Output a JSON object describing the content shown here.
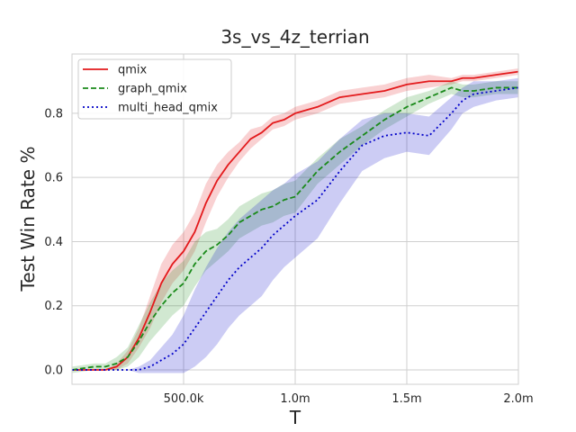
{
  "chart_data": {
    "type": "line",
    "title": "3s_vs_4z_terrian",
    "xlabel": "T",
    "ylabel": "Test Win Rate %",
    "xlim": [
      0,
      2000000
    ],
    "ylim": [
      -0.045,
      0.985
    ],
    "x_ticks": [
      {
        "value": 500000,
        "label": "500.0k"
      },
      {
        "value": 1000000,
        "label": "1.0m"
      },
      {
        "value": 1500000,
        "label": "1.5m"
      },
      {
        "value": 2000000,
        "label": "2.0m"
      }
    ],
    "y_ticks": [
      {
        "value": 0.0,
        "label": "0.0"
      },
      {
        "value": 0.2,
        "label": "0.2"
      },
      {
        "value": 0.4,
        "label": "0.4"
      },
      {
        "value": 0.6,
        "label": "0.6"
      },
      {
        "value": 0.8,
        "label": "0.8"
      }
    ],
    "grid": true,
    "legend_position": "top-left",
    "x": [
      0,
      100000,
      150000,
      200000,
      250000,
      300000,
      350000,
      400000,
      450000,
      500000,
      550000,
      600000,
      650000,
      700000,
      750000,
      800000,
      850000,
      900000,
      950000,
      1000000,
      1100000,
      1200000,
      1300000,
      1400000,
      1500000,
      1600000,
      1700000,
      1750000,
      1800000,
      1900000,
      2000000
    ],
    "series": [
      {
        "name": "qmix",
        "color": "#e31a1c",
        "dash": "solid",
        "values": [
          0.0,
          0.0,
          0.0,
          0.01,
          0.04,
          0.1,
          0.18,
          0.27,
          0.33,
          0.37,
          0.43,
          0.52,
          0.59,
          0.64,
          0.68,
          0.72,
          0.74,
          0.77,
          0.78,
          0.8,
          0.82,
          0.85,
          0.86,
          0.87,
          0.89,
          0.9,
          0.9,
          0.91,
          0.91,
          0.92,
          0.93
        ],
        "band": [
          0.0,
          0.0,
          0.0,
          0.01,
          0.02,
          0.03,
          0.05,
          0.06,
          0.06,
          0.06,
          0.06,
          0.06,
          0.05,
          0.04,
          0.03,
          0.03,
          0.02,
          0.02,
          0.02,
          0.02,
          0.02,
          0.02,
          0.02,
          0.02,
          0.02,
          0.02,
          0.01,
          0.01,
          0.01,
          0.01,
          0.01
        ]
      },
      {
        "name": "graph_qmix",
        "color": "#1a8a1a",
        "dash": "dashed",
        "values": [
          0.0,
          0.01,
          0.01,
          0.02,
          0.04,
          0.09,
          0.15,
          0.2,
          0.24,
          0.27,
          0.33,
          0.37,
          0.39,
          0.42,
          0.46,
          0.48,
          0.5,
          0.51,
          0.53,
          0.54,
          0.62,
          0.68,
          0.73,
          0.78,
          0.82,
          0.85,
          0.88,
          0.87,
          0.87,
          0.88,
          0.88
        ],
        "band": [
          0.01,
          0.01,
          0.01,
          0.02,
          0.03,
          0.05,
          0.06,
          0.07,
          0.07,
          0.07,
          0.07,
          0.06,
          0.05,
          0.05,
          0.05,
          0.05,
          0.05,
          0.05,
          0.05,
          0.05,
          0.04,
          0.04,
          0.03,
          0.03,
          0.03,
          0.02,
          0.02,
          0.02,
          0.02,
          0.02,
          0.02
        ]
      },
      {
        "name": "multi_head_qmix",
        "color": "#0000c8",
        "dash": "dotted",
        "values": [
          0.0,
          0.0,
          0.0,
          0.0,
          0.0,
          0.0,
          0.01,
          0.03,
          0.05,
          0.08,
          0.13,
          0.18,
          0.23,
          0.28,
          0.32,
          0.35,
          0.38,
          0.42,
          0.45,
          0.48,
          0.53,
          0.62,
          0.7,
          0.73,
          0.74,
          0.73,
          0.8,
          0.84,
          0.86,
          0.87,
          0.88
        ],
        "band": [
          0.0,
          0.0,
          0.0,
          0.0,
          0.0,
          0.01,
          0.02,
          0.04,
          0.06,
          0.09,
          0.12,
          0.14,
          0.15,
          0.15,
          0.15,
          0.15,
          0.15,
          0.14,
          0.13,
          0.13,
          0.12,
          0.1,
          0.08,
          0.07,
          0.06,
          0.06,
          0.05,
          0.04,
          0.04,
          0.03,
          0.03
        ]
      }
    ]
  }
}
